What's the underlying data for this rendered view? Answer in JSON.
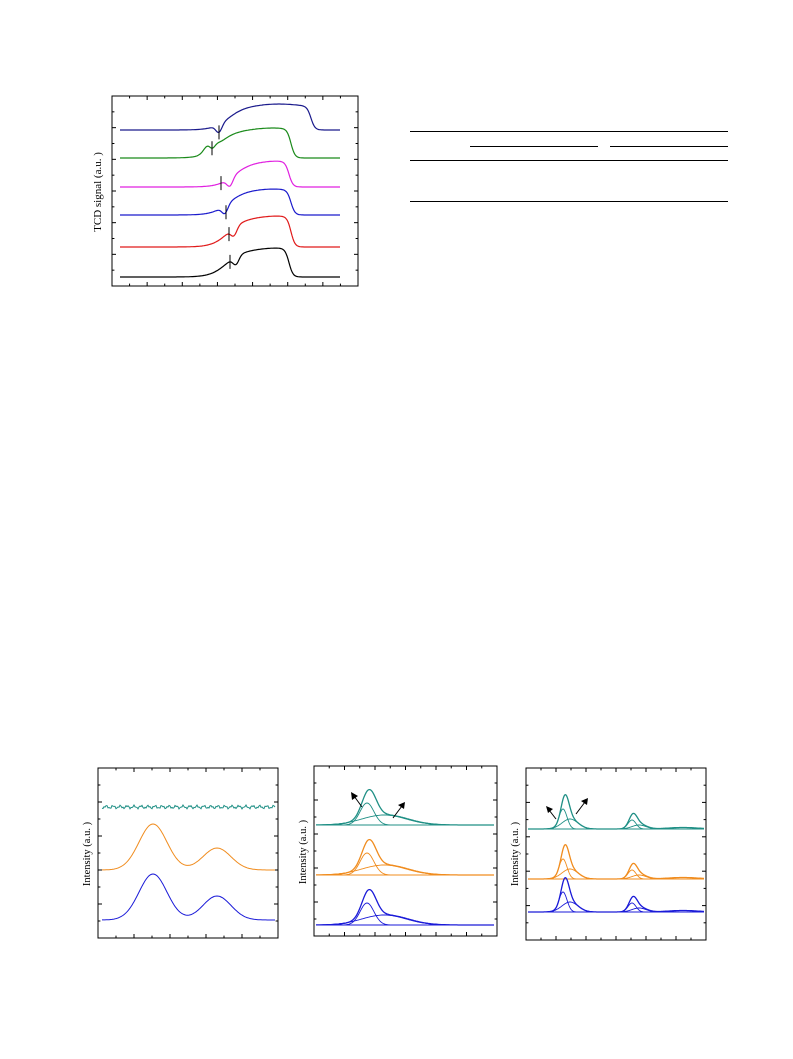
{
  "tpd_figure": {
    "ylabel": "TCD signal (a.u. )",
    "curve_colors": [
      "#1a1a8c",
      "#1a8a1a",
      "#e020e0",
      "#1a1acc",
      "#e01a1a",
      "#000000"
    ]
  },
  "panel_left": {
    "ylabel": "Intensity (a.u. )",
    "curve_colors": [
      "#1f8f85",
      "#f08c1e",
      "#1a1ad8"
    ]
  },
  "panel_mid": {
    "ylabel": "Intensity (a.u. )",
    "curve_colors": [
      "#1f8f85",
      "#f08c1e",
      "#1a1ad8"
    ]
  },
  "panel_right": {
    "ylabel": "Intensity (a.u. )",
    "curve_colors": [
      "#1f8f85",
      "#f08c1e",
      "#1a1ad8"
    ]
  }
}
